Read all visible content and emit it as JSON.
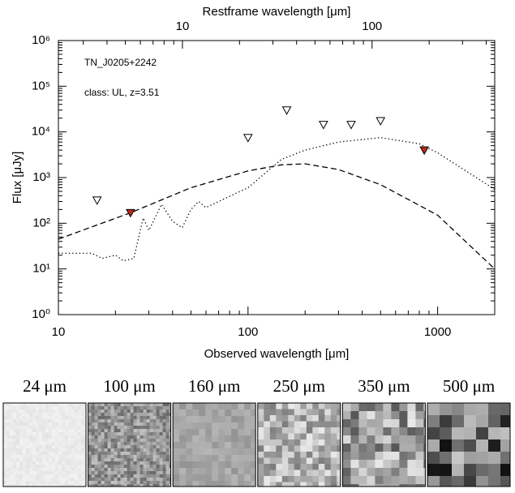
{
  "chart_data": {
    "type": "sed",
    "title": "Restframe wavelength [μm]",
    "x_label": "Observed wavelength [μm]",
    "y_label": "Flux [μJy]",
    "annotations": [
      "TN_J0205+2242",
      "class: UL, z=3.51"
    ],
    "log_x": true,
    "log_y": true,
    "xlim": [
      10,
      2000
    ],
    "xticks": [
      10,
      100,
      1000
    ],
    "x2lim": [
      2.217,
      443.5
    ],
    "x2ticks": [
      10,
      100
    ],
    "ylim": [
      1,
      1000000
    ],
    "yticks": [
      {
        "value": 1,
        "label": "10⁰"
      },
      {
        "value": 10,
        "label": "10¹"
      },
      {
        "value": 100,
        "label": "10²"
      },
      {
        "value": 1000,
        "label": "10³"
      },
      {
        "value": 10000,
        "label": "10⁴"
      },
      {
        "value": 100000,
        "label": "10⁵"
      },
      {
        "value": 1000000,
        "label": "10⁶"
      }
    ],
    "series": [
      {
        "style": "dashed",
        "color": "#000000",
        "x": [
          10,
          24,
          50,
          100,
          150,
          200,
          300,
          500,
          1000,
          2000
        ],
        "values": [
          45,
          170,
          600,
          1400,
          1900,
          2000,
          1500,
          700,
          150,
          10
        ]
      },
      {
        "style": "dotted",
        "color": "#000000",
        "x": [
          10,
          15,
          17,
          20,
          22,
          25,
          28,
          30,
          35,
          40,
          45,
          50,
          55,
          60,
          70,
          100,
          150,
          200,
          300,
          500,
          800,
          1000,
          2000
        ],
        "values": [
          22,
          22,
          17,
          20,
          15,
          17,
          130,
          70,
          260,
          110,
          80,
          200,
          300,
          220,
          300,
          600,
          2500,
          4000,
          6000,
          7500,
          5500,
          3500,
          550
        ]
      }
    ],
    "markers": [
      {
        "fill": "none",
        "color": "#000000",
        "x": [
          16,
          100,
          160,
          250,
          350,
          500
        ],
        "values": [
          320,
          7500,
          30000,
          14500,
          14500,
          17500
        ]
      },
      {
        "fill": "#c0281c",
        "color": "#000000",
        "x": [
          24,
          850
        ],
        "values": [
          170,
          4000
        ]
      }
    ]
  },
  "cutouts": [
    "24 μm",
    "100 μm",
    "160 μm",
    "250 μm",
    "350 μm",
    "500 μm"
  ]
}
